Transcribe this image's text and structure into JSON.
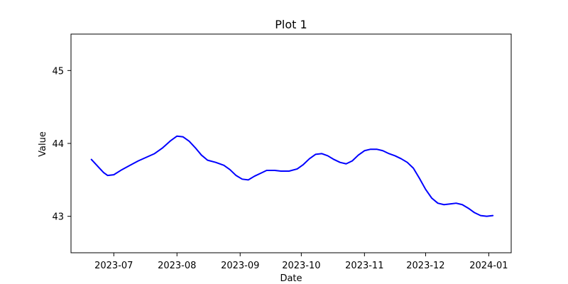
{
  "chart_data": {
    "type": "line",
    "title": "Plot 1",
    "xlabel": "Date",
    "ylabel": "Value",
    "xlim": [
      "2023-06-10",
      "2024-01-12"
    ],
    "ylim": [
      42.5,
      45.5
    ],
    "x_ticks": [
      "2023-07-01",
      "2023-08-01",
      "2023-09-01",
      "2023-10-01",
      "2023-11-01",
      "2023-12-01",
      "2024-01-01"
    ],
    "x_tick_labels": [
      "2023-07",
      "2023-08",
      "2023-09",
      "2023-10",
      "2023-11",
      "2023-12",
      "2024-01"
    ],
    "y_ticks": [
      43,
      44,
      45
    ],
    "y_tick_labels": [
      "43",
      "44",
      "45"
    ],
    "grid": false,
    "series": [
      {
        "color": "#0000ff",
        "x": [
          "2023-06-20",
          "2023-06-24",
          "2023-06-26",
          "2023-06-28",
          "2023-07-01",
          "2023-07-05",
          "2023-07-09",
          "2023-07-13",
          "2023-07-17",
          "2023-07-21",
          "2023-07-25",
          "2023-07-29",
          "2023-08-01",
          "2023-08-04",
          "2023-08-07",
          "2023-08-10",
          "2023-08-13",
          "2023-08-16",
          "2023-08-20",
          "2023-08-24",
          "2023-08-27",
          "2023-08-30",
          "2023-09-02",
          "2023-09-05",
          "2023-09-08",
          "2023-09-11",
          "2023-09-14",
          "2023-09-18",
          "2023-09-21",
          "2023-09-25",
          "2023-09-29",
          "2023-10-02",
          "2023-10-05",
          "2023-10-08",
          "2023-10-11",
          "2023-10-14",
          "2023-10-17",
          "2023-10-20",
          "2023-10-23",
          "2023-10-26",
          "2023-10-29",
          "2023-11-01",
          "2023-11-04",
          "2023-11-07",
          "2023-11-10",
          "2023-11-13",
          "2023-11-16",
          "2023-11-19",
          "2023-11-22",
          "2023-11-25",
          "2023-11-28",
          "2023-12-01",
          "2023-12-04",
          "2023-12-07",
          "2023-12-10",
          "2023-12-13",
          "2023-12-16",
          "2023-12-19",
          "2023-12-22",
          "2023-12-25",
          "2023-12-28",
          "2023-12-31",
          "2024-01-03"
        ],
        "y": [
          43.78,
          43.66,
          43.6,
          43.56,
          43.57,
          43.64,
          43.7,
          43.76,
          43.81,
          43.86,
          43.94,
          44.04,
          44.1,
          44.09,
          44.03,
          43.94,
          43.84,
          43.77,
          43.74,
          43.7,
          43.64,
          43.56,
          43.51,
          43.5,
          43.55,
          43.59,
          43.63,
          43.63,
          43.62,
          43.62,
          43.65,
          43.71,
          43.79,
          43.85,
          43.86,
          43.83,
          43.78,
          43.74,
          43.72,
          43.76,
          43.84,
          43.9,
          43.92,
          43.92,
          43.9,
          43.86,
          43.83,
          43.79,
          43.74,
          43.66,
          43.52,
          43.37,
          43.25,
          43.18,
          43.16,
          43.17,
          43.18,
          43.16,
          43.11,
          43.05,
          43.01,
          43.0,
          43.01
        ]
      }
    ]
  }
}
